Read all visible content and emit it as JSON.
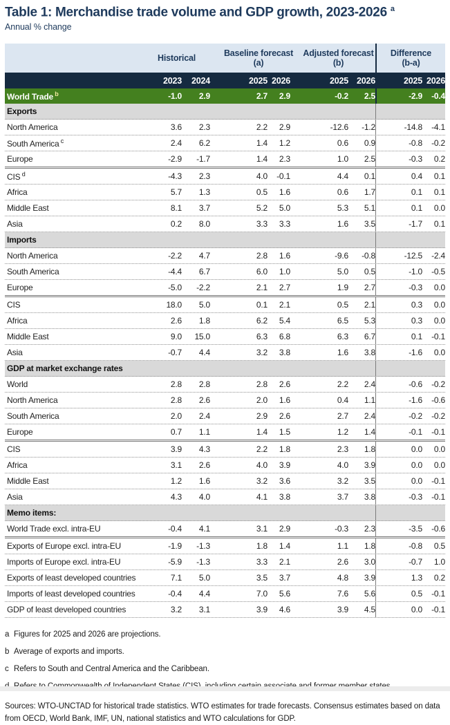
{
  "title": "Table 1: Merchandise trade volume and GDP growth, 2023-2026",
  "title_superscript": "a",
  "subtitle": "Annual % change",
  "colors": {
    "title_navy": "#1e3a5c",
    "band_blue": "#dce6f1",
    "band_navy": "#152a40",
    "world_trade_green": "#44801f",
    "section_gray": "#d9d9d9"
  },
  "table": {
    "col_groups": [
      {
        "label": "Historical",
        "sub": ""
      },
      {
        "label": "Baseline forecast",
        "sub": "(a)"
      },
      {
        "label": "Adjusted forecast",
        "sub": "(b)"
      },
      {
        "label": "Difference",
        "sub": "(b-a)"
      }
    ],
    "year_cols": [
      "2023",
      "2024",
      "2025",
      "2026",
      "2025",
      "2026",
      "2025",
      "2026"
    ],
    "world_trade": {
      "label": "World Trade",
      "sup": "b",
      "values": [
        "-1.0",
        "2.9",
        "2.7",
        "2.9",
        "-0.2",
        "2.5",
        "-2.9",
        "-0.4"
      ]
    },
    "sections": [
      {
        "header": "Exports",
        "rows": [
          {
            "label": "North America",
            "values": [
              "3.6",
              "2.3",
              "2.2",
              "2.9",
              "-12.6",
              "-1.2",
              "-14.8",
              "-4.1"
            ]
          },
          {
            "label": "South America",
            "sup": "c",
            "values": [
              "2.4",
              "6.2",
              "1.4",
              "1.2",
              "0.6",
              "0.9",
              "-0.8",
              "-0.2"
            ]
          },
          {
            "label": "Europe",
            "group_end": true,
            "values": [
              "-2.9",
              "-1.7",
              "1.4",
              "2.3",
              "1.0",
              "2.5",
              "-0.3",
              "0.2"
            ]
          },
          {
            "label": "CIS",
            "sup": "d",
            "values": [
              "-4.3",
              "2.3",
              "4.0",
              "-0.1",
              "4.4",
              "0.1",
              "0.4",
              "0.1"
            ]
          },
          {
            "label": "Africa",
            "values": [
              "5.7",
              "1.3",
              "0.5",
              "1.6",
              "0.6",
              "1.7",
              "0.1",
              "0.1"
            ]
          },
          {
            "label": "Middle East",
            "values": [
              "8.1",
              "3.7",
              "5.2",
              "5.0",
              "5.3",
              "5.1",
              "0.1",
              "0.0"
            ]
          },
          {
            "label": "Asia",
            "values": [
              "0.2",
              "8.0",
              "3.3",
              "3.3",
              "1.6",
              "3.5",
              "-1.7",
              "0.1"
            ]
          }
        ]
      },
      {
        "header": "Imports",
        "rows": [
          {
            "label": "North America",
            "values": [
              "-2.2",
              "4.7",
              "2.8",
              "1.6",
              "-9.6",
              "-0.8",
              "-12.5",
              "-2.4"
            ]
          },
          {
            "label": "South America",
            "values": [
              "-4.4",
              "6.7",
              "6.0",
              "1.0",
              "5.0",
              "0.5",
              "-1.0",
              "-0.5"
            ]
          },
          {
            "label": "Europe",
            "group_end": true,
            "values": [
              "-5.0",
              "-2.2",
              "2.1",
              "2.7",
              "1.9",
              "2.7",
              "-0.3",
              "0.0"
            ]
          },
          {
            "label": "CIS",
            "values": [
              "18.0",
              "5.0",
              "0.1",
              "2.1",
              "0.5",
              "2.1",
              "0.3",
              "0.0"
            ]
          },
          {
            "label": "Africa",
            "values": [
              "2.6",
              "1.8",
              "6.2",
              "5.4",
              "6.5",
              "5.3",
              "0.3",
              "0.0"
            ]
          },
          {
            "label": "Middle East",
            "values": [
              "9.0",
              "15.0",
              "6.3",
              "6.8",
              "6.3",
              "6.7",
              "0.1",
              "-0.1"
            ]
          },
          {
            "label": "Asia",
            "values": [
              "-0.7",
              "4.4",
              "3.2",
              "3.8",
              "1.6",
              "3.8",
              "-1.6",
              "0.0"
            ]
          }
        ]
      },
      {
        "header": "GDP at market exchange rates",
        "rows": [
          {
            "label": "World",
            "values": [
              "2.8",
              "2.8",
              "2.8",
              "2.6",
              "2.2",
              "2.4",
              "-0.6",
              "-0.2"
            ]
          },
          {
            "label": "North America",
            "values": [
              "2.8",
              "2.6",
              "2.0",
              "1.6",
              "0.4",
              "1.1",
              "-1.6",
              "-0.6"
            ]
          },
          {
            "label": "South America",
            "values": [
              "2.0",
              "2.4",
              "2.9",
              "2.6",
              "2.7",
              "2.4",
              "-0.2",
              "-0.2"
            ]
          },
          {
            "label": "Europe",
            "group_end": true,
            "values": [
              "0.7",
              "1.1",
              "1.4",
              "1.5",
              "1.2",
              "1.4",
              "-0.1",
              "-0.1"
            ]
          },
          {
            "label": "CIS",
            "values": [
              "3.9",
              "4.3",
              "2.2",
              "1.8",
              "2.3",
              "1.8",
              "0.0",
              "0.0"
            ]
          },
          {
            "label": "Africa",
            "values": [
              "3.1",
              "2.6",
              "4.0",
              "3.9",
              "4.0",
              "3.9",
              "0.0",
              "0.0"
            ]
          },
          {
            "label": "Middle East",
            "values": [
              "1.2",
              "1.6",
              "3.2",
              "3.6",
              "3.2",
              "3.5",
              "0.0",
              "-0.1"
            ]
          },
          {
            "label": "Asia",
            "values": [
              "4.3",
              "4.0",
              "4.1",
              "3.8",
              "3.7",
              "3.8",
              "-0.3",
              "-0.1"
            ]
          }
        ]
      },
      {
        "header": "Memo items:",
        "rows": [
          {
            "label": "World Trade excl. intra-EU",
            "group_end": true,
            "values": [
              "-0.4",
              "4.1",
              "3.1",
              "2.9",
              "-0.3",
              "2.3",
              "-3.5",
              "-0.6"
            ]
          },
          {
            "label": "Exports of Europe excl. intra-EU",
            "values": [
              "-1.9",
              "-1.3",
              "1.8",
              "1.4",
              "1.1",
              "1.8",
              "-0.8",
              "0.5"
            ]
          },
          {
            "label": "Imports of Europe excl. intra-EU",
            "values": [
              "-5.9",
              "-1.3",
              "3.3",
              "2.1",
              "2.6",
              "3.0",
              "-0.7",
              "1.0"
            ]
          },
          {
            "label": "Exports of least developed countries",
            "values": [
              "7.1",
              "5.0",
              "3.5",
              "3.7",
              "4.8",
              "3.9",
              "1.3",
              "0.2"
            ]
          },
          {
            "label": "Imports of least developed countries",
            "values": [
              "-0.4",
              "4.4",
              "7.0",
              "5.6",
              "7.6",
              "5.6",
              "0.5",
              "-0.1"
            ]
          },
          {
            "label": "GDP of least developed countries",
            "values": [
              "3.2",
              "3.1",
              "3.9",
              "4.6",
              "3.9",
              "4.5",
              "0.0",
              "-0.1"
            ]
          }
        ]
      }
    ]
  },
  "footnotes": [
    {
      "mark": "a",
      "text": "Figures for 2025 and 2026 are projections."
    },
    {
      "mark": "b",
      "text": "Average of exports and imports."
    },
    {
      "mark": "c",
      "text": "Refers to South and Central America and the Caribbean."
    },
    {
      "mark": "d",
      "text": "Refers to Commonwealth of Independent States (CIS), including certain associate and former member states."
    }
  ],
  "sources": "Sources: WTO-UNCTAD for historical trade statistics. WTO estimates for trade forecasts.  Consensus estimates based on data from OECD, World Bank, IMF, UN, national statistics and WTO calculations for GDP."
}
